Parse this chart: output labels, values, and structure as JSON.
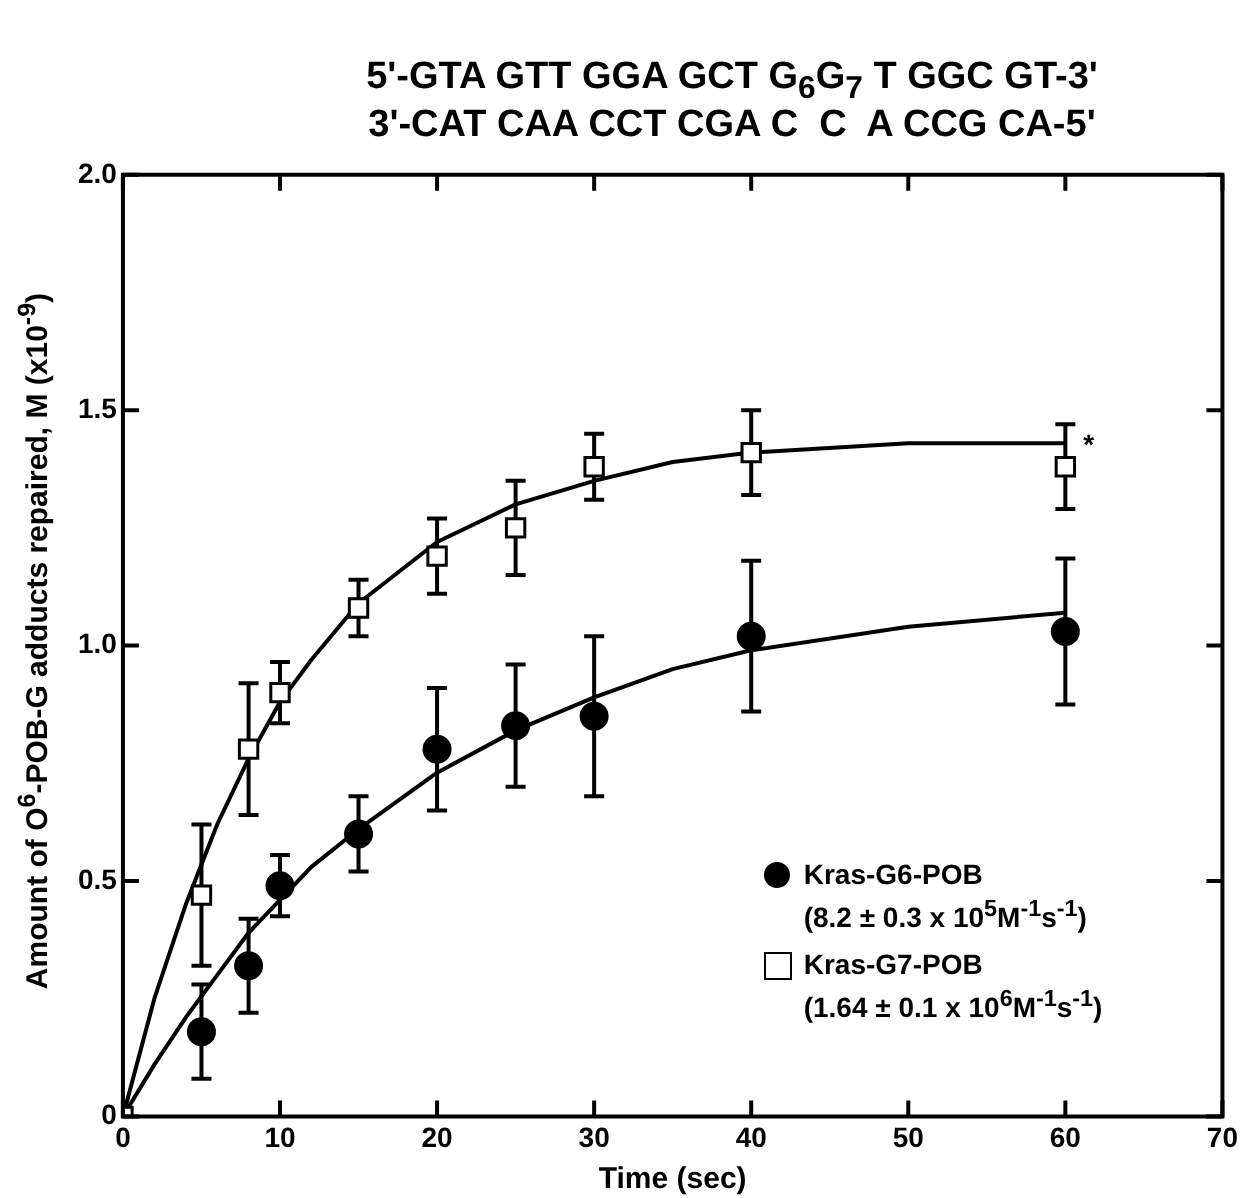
{
  "chart_data": {
    "type": "scatter",
    "title": "5'-GTA GTT GGA GCT G$_{6}$G$_{7}$ T GGC GT-3'",
    "subtitle": "3'-CAT CAA CCT CGA C  C  A CCG CA-5'",
    "xlabel": "Time (sec)",
    "ylabel": "Amount of O$^{6}$-POB-G adducts repaired, M (x10$^{-9}$)",
    "xlim": [
      0,
      70
    ],
    "xticks": [
      0,
      10,
      20,
      30,
      40,
      50,
      60,
      70
    ],
    "ylim": [
      0,
      2
    ],
    "yticks": [
      0,
      {
        "value": 0.5,
        "label": "0.5"
      },
      {
        "value": 1,
        "label": "1.0"
      },
      {
        "value": 1.5,
        "label": "1.5"
      },
      {
        "value": 2,
        "label": "2.0"
      }
    ],
    "grid": false,
    "legend": "bottom right",
    "annotations": [
      {
        "text": "*",
        "x": 60,
        "y": 1.38
      }
    ],
    "series": [
      {
        "name": "Kras-G6-POB\n(8.2 ± 0.3 x 10$^{5}$M$^{-1}$s$^{-1}$)",
        "marker": "circle",
        "color": "#000000",
        "x": [
          5,
          8,
          10,
          15,
          20,
          25,
          30,
          40,
          60
        ],
        "values": [
          0.18,
          0.32,
          0.49,
          0.6,
          0.78,
          0.83,
          0.85,
          1.02,
          1.03
        ],
        "errors": [
          0.1,
          0.1,
          0.065,
          0.08,
          0.13,
          0.13,
          0.17,
          0.16,
          0.155
        ]
      },
      {
        "name": "Kras-G7-POB\n(1.64 ± 0.1 x 10$^{6}$M$^{-1}$s$^{-1}$)",
        "marker": "square",
        "color": "#000000",
        "x": [
          0,
          5,
          8,
          10,
          15,
          20,
          25,
          30,
          40,
          60
        ],
        "values": [
          0,
          0.47,
          0.78,
          0.9,
          1.08,
          1.19,
          1.25,
          1.38,
          1.41,
          1.38
        ],
        "errors": [
          null,
          0.15,
          0.14,
          0.065,
          0.06,
          0.08,
          0.1,
          0.07,
          0.09,
          0.09
        ]
      },
      {
        "type": "line",
        "marker": "none",
        "color": "#000000",
        "x": [
          0,
          2,
          4,
          6,
          8,
          10,
          12,
          15,
          20,
          25,
          30,
          35,
          40,
          50,
          60
        ],
        "values": [
          0,
          0.11,
          0.21,
          0.3,
          0.39,
          0.46,
          0.53,
          0.61,
          0.73,
          0.82,
          0.89,
          0.95,
          0.99,
          1.04,
          1.07
        ]
      },
      {
        "type": "line",
        "marker": "none",
        "color": "#000000",
        "x": [
          0,
          2,
          4,
          6,
          8,
          10,
          12,
          15,
          20,
          25,
          30,
          35,
          40,
          50,
          60
        ],
        "values": [
          0,
          0.25,
          0.45,
          0.62,
          0.76,
          0.88,
          0.97,
          1.09,
          1.22,
          1.3,
          1.35,
          1.39,
          1.41,
          1.43,
          1.43
        ]
      }
    ]
  }
}
